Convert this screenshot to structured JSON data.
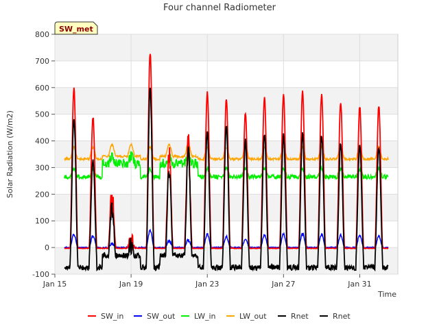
{
  "chart_data": {
    "type": "line",
    "title": "Four channel Radiometer",
    "xlabel": "Time",
    "ylabel": "Solar Radiation (W/m2)",
    "ylim": [
      -100,
      800
    ],
    "yticks": [
      -100,
      0,
      100,
      200,
      300,
      400,
      500,
      600,
      700,
      800
    ],
    "xlim": [
      0,
      18
    ],
    "xticks": [
      {
        "x": 0,
        "label": "Jan 15"
      },
      {
        "x": 4,
        "label": "Jan 19"
      },
      {
        "x": 8,
        "label": "Jan 23"
      },
      {
        "x": 12,
        "label": "Jan 27"
      },
      {
        "x": 16,
        "label": "Jan 31"
      }
    ],
    "station_badge": "SW_met",
    "legend_position": "bottom-center",
    "day_start": 0.5,
    "days": 17,
    "daily_peaks": {
      "SW_in": [
        600,
        490,
        200,
        25,
        730,
        350,
        395,
        580,
        555,
        505,
        565,
        575,
        585,
        575,
        545,
        530,
        530
      ],
      "SW_out": [
        50,
        45,
        15,
        10,
        65,
        25,
        28,
        50,
        40,
        30,
        48,
        50,
        52,
        50,
        45,
        45,
        42
      ],
      "Rnet": [
        490,
        330,
        150,
        10,
        595,
        300,
        370,
        435,
        460,
        400,
        430,
        420,
        425,
        420,
        390,
        385,
        380
      ]
    },
    "series": [
      {
        "name": "SW_in",
        "color": "#ff0000"
      },
      {
        "name": "SW_out",
        "color": "#0000ff"
      },
      {
        "name": "LW_in",
        "color": "#00ee00"
      },
      {
        "name": "LW_out",
        "color": "#ffa500"
      },
      {
        "name": "Rnet",
        "color": "#000000"
      },
      {
        "name": "Rnet",
        "color": "#000000"
      }
    ]
  }
}
